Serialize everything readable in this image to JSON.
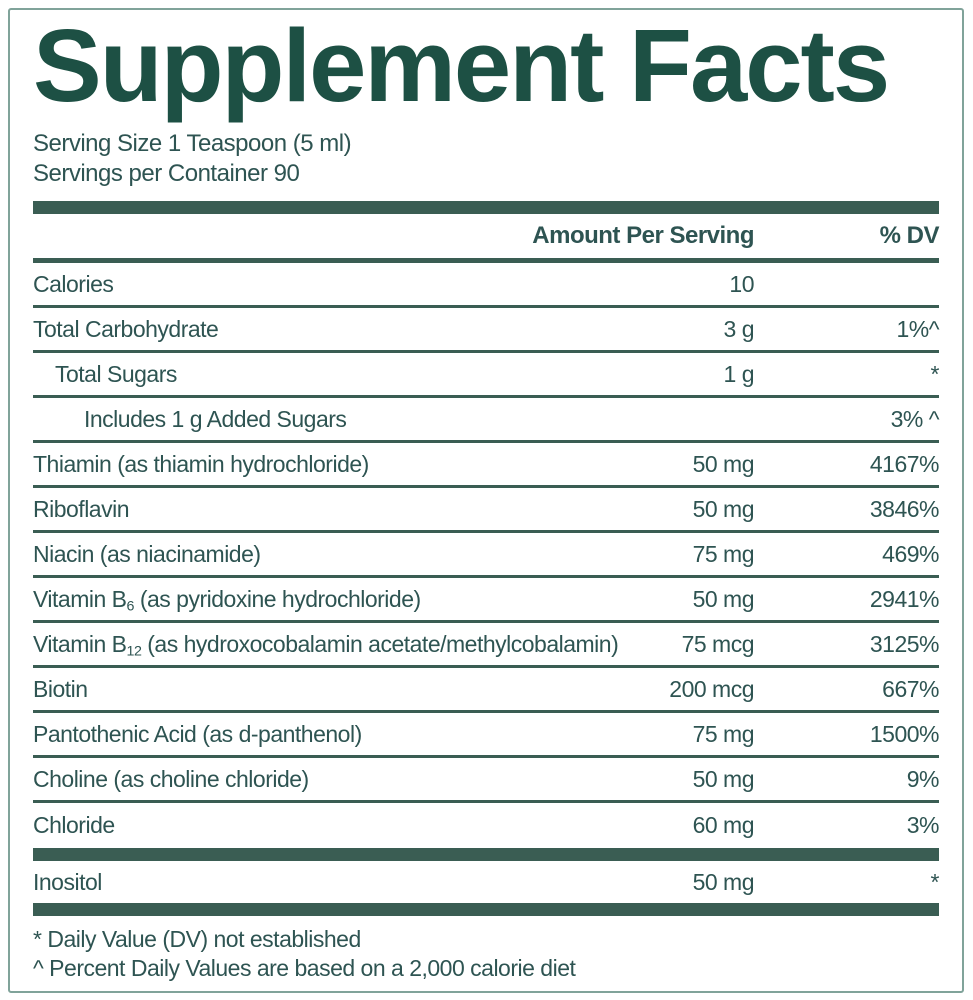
{
  "panel": {
    "title": "Supplement Facts",
    "serving_size": "Serving Size 1 Teaspoon (5 ml)",
    "servings_per_container": "Servings per Container 90",
    "columns": {
      "amount": "Amount Per Serving",
      "dv": "% DV"
    },
    "rows": [
      {
        "name": [
          "Calories"
        ],
        "amount": "10",
        "dv": "",
        "indent": 0
      },
      {
        "name": [
          "Total Carbohydrate"
        ],
        "amount": "3 g",
        "dv": "1%^",
        "indent": 0
      },
      {
        "name": [
          "Total Sugars"
        ],
        "amount": "1 g",
        "dv": "*",
        "indent": 1
      },
      {
        "name": [
          "Includes 1 g Added Sugars"
        ],
        "amount": "",
        "dv": "3% ^",
        "indent": 2
      },
      {
        "name": [
          "Thiamin (as thiamin hydrochloride)"
        ],
        "amount": "50 mg",
        "dv": "4167%",
        "indent": 0
      },
      {
        "name": [
          "Riboflavin"
        ],
        "amount": "50 mg",
        "dv": "3846%",
        "indent": 0
      },
      {
        "name": [
          "Niacin (as niacinamide)"
        ],
        "amount": "75 mg",
        "dv": "469%",
        "indent": 0
      },
      {
        "name": [
          "Vitamin B",
          {
            "sub": "6"
          },
          " (as pyridoxine hydrochloride)"
        ],
        "amount": "50 mg",
        "dv": "2941%",
        "indent": 0
      },
      {
        "name": [
          "Vitamin B",
          {
            "sub": "12"
          },
          " (as hydroxocobalamin acetate/methylcobalamin)"
        ],
        "amount": "75 mcg",
        "dv": "3125%",
        "indent": 0
      },
      {
        "name": [
          "Biotin"
        ],
        "amount": "200 mcg",
        "dv": "667%",
        "indent": 0
      },
      {
        "name": [
          "Pantothenic Acid (as d-panthenol)"
        ],
        "amount": "75 mg",
        "dv": "1500%",
        "indent": 0
      },
      {
        "name": [
          "Choline (as choline chloride)"
        ],
        "amount": "50 mg",
        "dv": "9%",
        "indent": 0
      },
      {
        "name": [
          "Chloride"
        ],
        "amount": "60 mg",
        "dv": "3%",
        "indent": 0,
        "bar_after": true
      },
      {
        "name": [
          "Inositol"
        ],
        "amount": "50 mg",
        "dv": "*",
        "indent": 0,
        "short": true,
        "bar_after": true
      }
    ],
    "footnotes": [
      "* Daily Value (DV) not established",
      "^ Percent Daily Values are based on a 2,000 calorie diet"
    ],
    "colors": {
      "title": "#1d5044",
      "text": "#2e5452",
      "rule": "#3a5d53",
      "border": "#80a39a"
    }
  }
}
